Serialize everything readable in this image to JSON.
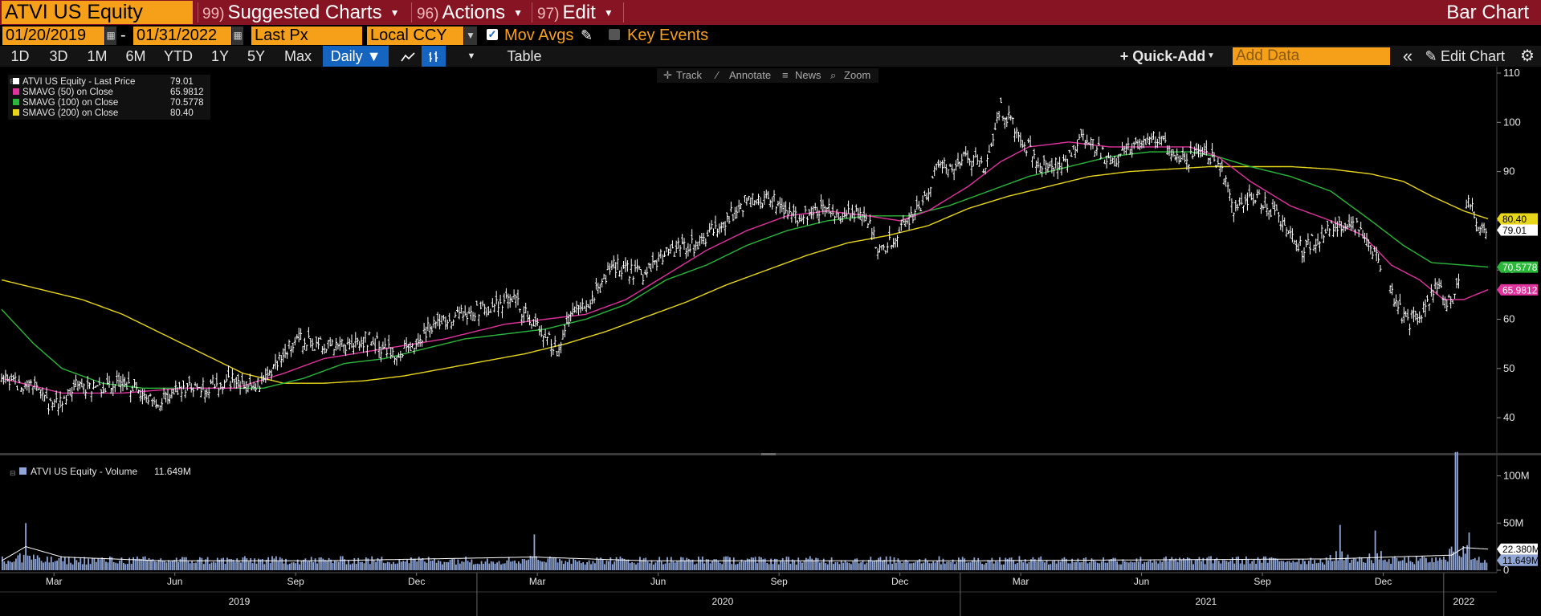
{
  "header": {
    "ticker": "ATVI US Equity",
    "menus": [
      {
        "num": "99)",
        "label": "Suggested Charts"
      },
      {
        "num": "96)",
        "label": "Actions"
      },
      {
        "num": "97)",
        "label": "Edit"
      }
    ],
    "chart_type": "Bar Chart"
  },
  "controls": {
    "start_date": "01/20/2019",
    "date_separator": "-",
    "end_date": "01/31/2022",
    "field": "Last Px",
    "currency": "Local CCY",
    "mov_avgs": "Mov Avgs",
    "key_events": "Key Events"
  },
  "toolbar": {
    "periods": [
      "1D",
      "3D",
      "1M",
      "6M",
      "YTD",
      "1Y",
      "5Y",
      "Max"
    ],
    "frequency": "Daily ▼",
    "table": "Table",
    "quick_add": "+ Quick-Add",
    "add_data_placeholder": "Add Data",
    "collapse": "«",
    "edit_chart": "Edit Chart"
  },
  "chart_tools": [
    "Track",
    "Annotate",
    "News",
    "Zoom"
  ],
  "colors": {
    "price": "#ffffff",
    "sma50": "#e0339e",
    "sma100": "#2bb83a",
    "sma200": "#e8d61a",
    "volume": "#8fa6d6",
    "header_bg": "#861422",
    "orange": "#f6a01a"
  },
  "legend": [
    {
      "label": "ATVI US Equity - Last Price",
      "value": "79.01",
      "color": "#ffffff"
    },
    {
      "label": "SMAVG (50)  on Close",
      "value": "65.9812",
      "color": "#e0339e"
    },
    {
      "label": "SMAVG (100)  on Close",
      "value": "70.5778",
      "color": "#2bb83a"
    },
    {
      "label": "SMAVG (200)  on Close",
      "value": "80.40",
      "color": "#e8d61a"
    }
  ],
  "volume_legend": {
    "label": "ATVI US Equity - Volume",
    "value": "11.649M"
  },
  "price_tags": [
    {
      "text": "80.40",
      "value": 80.4,
      "bg": "#e8d61a",
      "fg": "#000"
    },
    {
      "text": "79.01",
      "value": 79.01,
      "bg": "#ffffff",
      "fg": "#000"
    },
    {
      "text": "70.5778",
      "value": 70.5778,
      "bg": "#2bb83a",
      "fg": "#fff"
    },
    {
      "text": "65.9812",
      "value": 65.9812,
      "bg": "#e0339e",
      "fg": "#fff"
    }
  ],
  "volume_tags": [
    {
      "text": "22.380M",
      "value": 22.38,
      "bg": "#ffffff",
      "fg": "#000"
    },
    {
      "text": "11.649M",
      "value": 11.649,
      "bg": "#8fa6d6",
      "fg": "#000"
    }
  ],
  "chart_data": {
    "type": "bar",
    "title": "ATVI US Equity",
    "price_axis": {
      "ticks": [
        40,
        50,
        60,
        70,
        80,
        90,
        100,
        110
      ],
      "range": [
        33,
        110
      ]
    },
    "volume_axis": {
      "ticks": [
        "0",
        "50M",
        "100M"
      ],
      "tick_values": [
        0,
        50,
        100
      ],
      "range": [
        0,
        120
      ]
    },
    "x_month_labels": [
      "Mar",
      "Jun",
      "Sep",
      "Dec",
      "Mar",
      "Jun",
      "Sep",
      "Dec",
      "Mar",
      "Jun",
      "Sep",
      "Dec"
    ],
    "x_month_index": [
      1.3,
      4.3,
      7.3,
      10.3,
      13.3,
      16.3,
      19.3,
      22.3,
      25.3,
      28.3,
      31.3,
      34.3
    ],
    "x_year_labels": [
      "2019",
      "2020",
      "2021",
      "2022"
    ],
    "x_year_index": [
      5.9,
      17.9,
      29.9,
      36.3
    ],
    "x_year_dividers": [
      11.8,
      23.8,
      35.8
    ],
    "x_range": [
      0,
      37
    ],
    "price_anchors": [
      [
        0,
        48
      ],
      [
        0.8,
        46
      ],
      [
        1.3,
        42
      ],
      [
        1.8,
        47
      ],
      [
        2.4,
        46
      ],
      [
        3,
        48
      ],
      [
        3.5,
        45
      ],
      [
        3.9,
        43
      ],
      [
        4.4,
        46
      ],
      [
        5,
        46
      ],
      [
        5.8,
        48
      ],
      [
        6.2,
        46
      ],
      [
        6.7,
        49
      ],
      [
        7.3,
        56
      ],
      [
        7.8,
        55
      ],
      [
        8.3,
        54
      ],
      [
        9.1,
        56
      ],
      [
        9.7,
        53
      ],
      [
        10.3,
        55
      ],
      [
        10.7,
        59
      ],
      [
        11.3,
        61
      ],
      [
        12,
        62
      ],
      [
        12.7,
        64
      ],
      [
        13.3,
        58
      ],
      [
        13.8,
        54
      ],
      [
        14.2,
        61
      ],
      [
        14.7,
        65
      ],
      [
        15.2,
        71
      ],
      [
        15.9,
        69
      ],
      [
        16.6,
        74
      ],
      [
        17.2,
        75
      ],
      [
        17.8,
        79
      ],
      [
        18.5,
        84
      ],
      [
        19.2,
        84
      ],
      [
        19.8,
        80
      ],
      [
        20.4,
        83
      ],
      [
        21,
        81
      ],
      [
        21.4,
        82
      ],
      [
        21.8,
        74
      ],
      [
        22.3,
        78
      ],
      [
        22.8,
        83
      ],
      [
        23.2,
        90
      ],
      [
        23.9,
        93
      ],
      [
        24.4,
        91
      ],
      [
        24.8,
        103
      ],
      [
        25.3,
        97
      ],
      [
        25.8,
        91
      ],
      [
        26.4,
        92
      ],
      [
        26.9,
        97
      ],
      [
        27.5,
        92
      ],
      [
        28.1,
        95
      ],
      [
        28.8,
        97
      ],
      [
        29.3,
        92
      ],
      [
        29.9,
        94
      ],
      [
        30.3,
        90
      ],
      [
        30.6,
        82
      ],
      [
        31.1,
        85
      ],
      [
        31.7,
        81
      ],
      [
        32.3,
        74
      ],
      [
        32.9,
        78
      ],
      [
        33.5,
        80
      ],
      [
        33.8,
        78
      ],
      [
        34.2,
        72
      ],
      [
        34.5,
        65
      ],
      [
        34.9,
        59
      ],
      [
        35.3,
        62
      ],
      [
        35.6,
        67
      ],
      [
        35.9,
        63
      ],
      [
        36.1,
        64
      ],
      [
        36.4,
        86
      ],
      [
        36.6,
        80
      ],
      [
        36.9,
        79
      ]
    ],
    "gaps": [
      [
        34.25,
        34.45
      ],
      [
        36.2,
        36.35
      ]
    ],
    "sma50_anchors": [
      [
        0,
        48
      ],
      [
        1.5,
        45
      ],
      [
        3,
        45
      ],
      [
        4.5,
        46
      ],
      [
        5.8,
        46
      ],
      [
        7,
        49
      ],
      [
        8,
        52
      ],
      [
        9.5,
        54
      ],
      [
        11,
        56
      ],
      [
        12.5,
        59
      ],
      [
        13.5,
        60
      ],
      [
        14.5,
        61
      ],
      [
        15.5,
        64
      ],
      [
        16.5,
        69
      ],
      [
        17.5,
        74
      ],
      [
        18.5,
        78
      ],
      [
        19.5,
        81
      ],
      [
        20.5,
        82
      ],
      [
        21.5,
        81
      ],
      [
        22.3,
        80
      ],
      [
        23,
        82
      ],
      [
        24,
        87
      ],
      [
        24.8,
        92
      ],
      [
        25.5,
        95
      ],
      [
        26.5,
        96
      ],
      [
        27.5,
        95
      ],
      [
        28.5,
        95
      ],
      [
        29.5,
        95
      ],
      [
        30.2,
        93
      ],
      [
        31,
        88
      ],
      [
        32,
        83
      ],
      [
        33,
        80
      ],
      [
        33.8,
        77
      ],
      [
        34.5,
        71
      ],
      [
        35.2,
        68
      ],
      [
        35.8,
        64
      ],
      [
        36.3,
        64
      ],
      [
        36.9,
        66
      ]
    ],
    "sma100_anchors": [
      [
        0,
        62
      ],
      [
        0.8,
        55
      ],
      [
        1.5,
        50
      ],
      [
        2.5,
        47
      ],
      [
        3.5,
        46
      ],
      [
        4.5,
        46
      ],
      [
        5.5,
        46
      ],
      [
        6.5,
        46
      ],
      [
        7.5,
        48
      ],
      [
        8.5,
        51
      ],
      [
        9.5,
        52
      ],
      [
        10.5,
        54
      ],
      [
        11.5,
        56
      ],
      [
        12.5,
        57
      ],
      [
        13.5,
        58
      ],
      [
        14.5,
        60
      ],
      [
        15.5,
        63
      ],
      [
        16.5,
        68
      ],
      [
        17.5,
        71
      ],
      [
        18.5,
        75
      ],
      [
        19.5,
        78
      ],
      [
        20.5,
        80
      ],
      [
        21.5,
        81
      ],
      [
        22.5,
        81
      ],
      [
        23.5,
        83
      ],
      [
        24.5,
        86
      ],
      [
        25.5,
        89
      ],
      [
        26.5,
        91
      ],
      [
        27.5,
        93
      ],
      [
        28.5,
        94
      ],
      [
        29.5,
        94
      ],
      [
        30.2,
        93
      ],
      [
        31,
        91
      ],
      [
        32,
        89
      ],
      [
        33,
        86
      ],
      [
        34,
        80
      ],
      [
        34.8,
        75
      ],
      [
        35.5,
        71.5
      ],
      [
        36.3,
        71
      ],
      [
        36.9,
        70.6
      ]
    ],
    "sma200_anchors": [
      [
        0,
        68
      ],
      [
        1,
        66
      ],
      [
        2,
        64
      ],
      [
        3,
        61
      ],
      [
        4,
        57
      ],
      [
        5,
        53
      ],
      [
        6,
        49
      ],
      [
        7,
        47
      ],
      [
        8,
        47
      ],
      [
        9,
        47.5
      ],
      [
        10,
        48.5
      ],
      [
        11,
        50
      ],
      [
        12,
        51.5
      ],
      [
        13,
        53
      ],
      [
        14,
        55
      ],
      [
        15,
        57.5
      ],
      [
        16,
        60.5
      ],
      [
        17,
        63.5
      ],
      [
        18,
        67
      ],
      [
        19,
        70
      ],
      [
        20,
        73
      ],
      [
        21,
        75.5
      ],
      [
        22,
        77
      ],
      [
        23,
        79
      ],
      [
        24,
        82.5
      ],
      [
        25,
        85
      ],
      [
        26,
        87
      ],
      [
        27,
        89
      ],
      [
        28,
        90
      ],
      [
        29,
        90.5
      ],
      [
        30,
        91
      ],
      [
        31,
        91
      ],
      [
        32,
        91
      ],
      [
        33,
        90.5
      ],
      [
        34,
        89.5
      ],
      [
        34.8,
        88
      ],
      [
        35.5,
        85
      ],
      [
        36.3,
        82
      ],
      [
        36.9,
        80.4
      ]
    ],
    "volume_spikes": [
      [
        0.6,
        50
      ],
      [
        13.2,
        38
      ],
      [
        33.2,
        48
      ],
      [
        34.1,
        42
      ],
      [
        36.1,
        125
      ],
      [
        36.4,
        40
      ]
    ],
    "volume_avg_anchors": [
      [
        0,
        10
      ],
      [
        0.6,
        25
      ],
      [
        1.5,
        14
      ],
      [
        4,
        10
      ],
      [
        8,
        10
      ],
      [
        13.2,
        14
      ],
      [
        16,
        10
      ],
      [
        24,
        10
      ],
      [
        33,
        12
      ],
      [
        34.5,
        14
      ],
      [
        36,
        16
      ],
      [
        36.3,
        24
      ],
      [
        36.9,
        22.38
      ]
    ]
  }
}
